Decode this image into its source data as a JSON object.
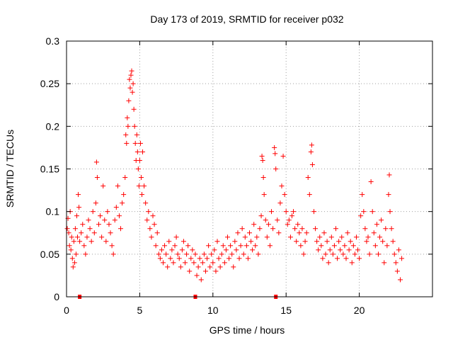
{
  "chart_data": {
    "type": "scatter",
    "title": "Day 173 of 2019, SRMTID for receiver p032",
    "xlabel": "GPS time / hours",
    "ylabel": "SRMTID / TECUs",
    "xlim": [
      0,
      25
    ],
    "ylim": [
      0,
      0.3
    ],
    "xticks": [
      0,
      5,
      10,
      15,
      20
    ],
    "xtick_labels": [
      "0",
      "5",
      "10",
      "15",
      "20"
    ],
    "yticks": [
      0,
      0.05,
      0.1,
      0.15,
      0.2,
      0.25,
      0.3
    ],
    "ytick_labels": [
      "0",
      "0.05",
      "0.1",
      "0.15",
      "0.2",
      "0.25",
      "0.3"
    ],
    "grid": true,
    "marker": "+",
    "color": "#ff0000",
    "series": [
      {
        "name": "SRMTID",
        "points": [
          [
            0.05,
            0.08
          ],
          [
            0.1,
            0.092
          ],
          [
            0.15,
            0.075
          ],
          [
            0.2,
            0.06
          ],
          [
            0.25,
            0.1
          ],
          [
            0.3,
            0.055
          ],
          [
            0.35,
            0.07
          ],
          [
            0.4,
            0.045
          ],
          [
            0.45,
            0.035
          ],
          [
            0.5,
            0.065
          ],
          [
            0.55,
            0.04
          ],
          [
            0.6,
            0.08
          ],
          [
            0.65,
            0.05
          ],
          [
            0.7,
            0.095
          ],
          [
            0.75,
            0.07
          ],
          [
            0.8,
            0.12
          ],
          [
            0.85,
            0.105
          ],
          [
            0.9,
            0.065
          ],
          [
            1.0,
            0.075
          ],
          [
            1.1,
            0.085
          ],
          [
            1.2,
            0.06
          ],
          [
            1.3,
            0.05
          ],
          [
            1.4,
            0.07
          ],
          [
            1.5,
            0.09
          ],
          [
            1.6,
            0.08
          ],
          [
            1.7,
            0.065
          ],
          [
            1.8,
            0.1
          ],
          [
            1.9,
            0.075
          ],
          [
            2.0,
            0.11
          ],
          [
            2.05,
            0.158
          ],
          [
            2.1,
            0.14
          ],
          [
            2.2,
            0.085
          ],
          [
            2.3,
            0.095
          ],
          [
            2.4,
            0.07
          ],
          [
            2.5,
            0.13
          ],
          [
            2.6,
            0.09
          ],
          [
            2.7,
            0.065
          ],
          [
            2.8,
            0.1
          ],
          [
            2.9,
            0.085
          ],
          [
            3.0,
            0.075
          ],
          [
            3.1,
            0.06
          ],
          [
            3.2,
            0.05
          ],
          [
            3.3,
            0.09
          ],
          [
            3.4,
            0.105
          ],
          [
            3.5,
            0.13
          ],
          [
            3.6,
            0.095
          ],
          [
            3.7,
            0.08
          ],
          [
            3.8,
            0.11
          ],
          [
            3.9,
            0.12
          ],
          [
            4.0,
            0.14
          ],
          [
            4.05,
            0.19
          ],
          [
            4.1,
            0.18
          ],
          [
            4.15,
            0.21
          ],
          [
            4.2,
            0.2
          ],
          [
            4.25,
            0.23
          ],
          [
            4.3,
            0.255
          ],
          [
            4.35,
            0.245
          ],
          [
            4.4,
            0.26
          ],
          [
            4.45,
            0.265
          ],
          [
            4.5,
            0.24
          ],
          [
            4.55,
            0.25
          ],
          [
            4.6,
            0.22
          ],
          [
            4.65,
            0.2
          ],
          [
            4.7,
            0.18
          ],
          [
            4.75,
            0.16
          ],
          [
            4.8,
            0.19
          ],
          [
            4.85,
            0.17
          ],
          [
            4.9,
            0.15
          ],
          [
            4.95,
            0.13
          ],
          [
            5.0,
            0.16
          ],
          [
            5.05,
            0.18
          ],
          [
            5.1,
            0.14
          ],
          [
            5.15,
            0.12
          ],
          [
            5.2,
            0.17
          ],
          [
            5.3,
            0.13
          ],
          [
            5.4,
            0.11
          ],
          [
            5.5,
            0.09
          ],
          [
            5.6,
            0.1
          ],
          [
            5.7,
            0.08
          ],
          [
            5.8,
            0.07
          ],
          [
            5.9,
            0.095
          ],
          [
            6.0,
            0.085
          ],
          [
            6.1,
            0.06
          ],
          [
            6.2,
            0.075
          ],
          [
            6.3,
            0.05
          ],
          [
            6.4,
            0.045
          ],
          [
            6.5,
            0.055
          ],
          [
            6.6,
            0.04
          ],
          [
            6.7,
            0.06
          ],
          [
            6.8,
            0.05
          ],
          [
            6.9,
            0.035
          ],
          [
            7.0,
            0.065
          ],
          [
            7.1,
            0.045
          ],
          [
            7.2,
            0.055
          ],
          [
            7.3,
            0.04
          ],
          [
            7.4,
            0.06
          ],
          [
            7.5,
            0.07
          ],
          [
            7.6,
            0.05
          ],
          [
            7.7,
            0.045
          ],
          [
            7.8,
            0.035
          ],
          [
            7.9,
            0.055
          ],
          [
            8.0,
            0.065
          ],
          [
            8.1,
            0.04
          ],
          [
            8.2,
            0.05
          ],
          [
            8.3,
            0.06
          ],
          [
            8.4,
            0.03
          ],
          [
            8.5,
            0.045
          ],
          [
            8.6,
            0.055
          ],
          [
            8.7,
            0.04
          ],
          [
            8.8,
            0.05
          ],
          [
            8.9,
            0.025
          ],
          [
            9.0,
            0.035
          ],
          [
            9.1,
            0.045
          ],
          [
            9.2,
            0.02
          ],
          [
            9.3,
            0.04
          ],
          [
            9.4,
            0.05
          ],
          [
            9.5,
            0.03
          ],
          [
            9.6,
            0.045
          ],
          [
            9.7,
            0.06
          ],
          [
            9.8,
            0.035
          ],
          [
            9.9,
            0.05
          ],
          [
            10.0,
            0.04
          ],
          [
            10.1,
            0.055
          ],
          [
            10.2,
            0.03
          ],
          [
            10.3,
            0.065
          ],
          [
            10.4,
            0.045
          ],
          [
            10.5,
            0.035
          ],
          [
            10.6,
            0.05
          ],
          [
            10.7,
            0.06
          ],
          [
            10.8,
            0.04
          ],
          [
            10.9,
            0.055
          ],
          [
            11.0,
            0.07
          ],
          [
            11.1,
            0.045
          ],
          [
            11.2,
            0.06
          ],
          [
            11.3,
            0.05
          ],
          [
            11.4,
            0.035
          ],
          [
            11.5,
            0.065
          ],
          [
            11.6,
            0.055
          ],
          [
            11.7,
            0.075
          ],
          [
            11.8,
            0.045
          ],
          [
            11.9,
            0.06
          ],
          [
            12.0,
            0.08
          ],
          [
            12.1,
            0.05
          ],
          [
            12.2,
            0.07
          ],
          [
            12.3,
            0.06
          ],
          [
            12.4,
            0.045
          ],
          [
            12.5,
            0.075
          ],
          [
            12.6,
            0.065
          ],
          [
            12.7,
            0.055
          ],
          [
            12.8,
            0.085
          ],
          [
            12.9,
            0.06
          ],
          [
            13.0,
            0.07
          ],
          [
            13.1,
            0.05
          ],
          [
            13.2,
            0.08
          ],
          [
            13.3,
            0.095
          ],
          [
            13.35,
            0.165
          ],
          [
            13.4,
            0.16
          ],
          [
            13.45,
            0.14
          ],
          [
            13.5,
            0.12
          ],
          [
            13.6,
            0.09
          ],
          [
            13.7,
            0.07
          ],
          [
            13.8,
            0.085
          ],
          [
            13.9,
            0.06
          ],
          [
            14.0,
            0.1
          ],
          [
            14.1,
            0.08
          ],
          [
            14.2,
            0.175
          ],
          [
            14.25,
            0.168
          ],
          [
            14.3,
            0.15
          ],
          [
            14.4,
            0.09
          ],
          [
            14.5,
            0.075
          ],
          [
            14.6,
            0.11
          ],
          [
            14.7,
            0.13
          ],
          [
            14.8,
            0.165
          ],
          [
            14.9,
            0.12
          ],
          [
            15.0,
            0.1
          ],
          [
            15.1,
            0.085
          ],
          [
            15.2,
            0.09
          ],
          [
            15.3,
            0.07
          ],
          [
            15.4,
            0.095
          ],
          [
            15.5,
            0.1
          ],
          [
            15.6,
            0.08
          ],
          [
            15.7,
            0.065
          ],
          [
            15.8,
            0.085
          ],
          [
            15.9,
            0.075
          ],
          [
            16.0,
            0.06
          ],
          [
            16.1,
            0.08
          ],
          [
            16.2,
            0.05
          ],
          [
            16.3,
            0.065
          ],
          [
            16.4,
            0.075
          ],
          [
            16.5,
            0.14
          ],
          [
            16.6,
            0.12
          ],
          [
            16.7,
            0.17
          ],
          [
            16.75,
            0.178
          ],
          [
            16.8,
            0.155
          ],
          [
            16.9,
            0.1
          ],
          [
            17.0,
            0.08
          ],
          [
            17.1,
            0.065
          ],
          [
            17.2,
            0.055
          ],
          [
            17.3,
            0.07
          ],
          [
            17.4,
            0.06
          ],
          [
            17.5,
            0.045
          ],
          [
            17.6,
            0.075
          ],
          [
            17.7,
            0.05
          ],
          [
            17.8,
            0.065
          ],
          [
            17.9,
            0.04
          ],
          [
            18.0,
            0.055
          ],
          [
            18.1,
            0.07
          ],
          [
            18.2,
            0.05
          ],
          [
            18.3,
            0.06
          ],
          [
            18.4,
            0.08
          ],
          [
            18.5,
            0.045
          ],
          [
            18.6,
            0.065
          ],
          [
            18.7,
            0.055
          ],
          [
            18.8,
            0.07
          ],
          [
            18.9,
            0.05
          ],
          [
            19.0,
            0.06
          ],
          [
            19.1,
            0.045
          ],
          [
            19.2,
            0.075
          ],
          [
            19.3,
            0.055
          ],
          [
            19.4,
            0.065
          ],
          [
            19.5,
            0.04
          ],
          [
            19.6,
            0.06
          ],
          [
            19.7,
            0.05
          ],
          [
            19.8,
            0.07
          ],
          [
            19.9,
            0.055
          ],
          [
            20.0,
            0.045
          ],
          [
            20.1,
            0.095
          ],
          [
            20.2,
            0.12
          ],
          [
            20.3,
            0.1
          ],
          [
            20.4,
            0.08
          ],
          [
            20.5,
            0.065
          ],
          [
            20.6,
            0.07
          ],
          [
            20.7,
            0.05
          ],
          [
            20.8,
            0.135
          ],
          [
            20.9,
            0.1
          ],
          [
            21.0,
            0.075
          ],
          [
            21.1,
            0.06
          ],
          [
            21.2,
            0.085
          ],
          [
            21.3,
            0.05
          ],
          [
            21.4,
            0.07
          ],
          [
            21.5,
            0.09
          ],
          [
            21.6,
            0.065
          ],
          [
            21.7,
            0.04
          ],
          [
            21.8,
            0.08
          ],
          [
            21.9,
            0.06
          ],
          [
            22.0,
            0.12
          ],
          [
            22.05,
            0.143
          ],
          [
            22.1,
            0.1
          ],
          [
            22.2,
            0.08
          ],
          [
            22.3,
            0.065
          ],
          [
            22.4,
            0.05
          ],
          [
            22.5,
            0.04
          ],
          [
            22.6,
            0.03
          ],
          [
            22.7,
            0.055
          ],
          [
            22.8,
            0.02
          ],
          [
            22.9,
            0.045
          ]
        ]
      }
    ],
    "axis_markers": [
      0.9,
      8.8,
      14.3
    ]
  }
}
